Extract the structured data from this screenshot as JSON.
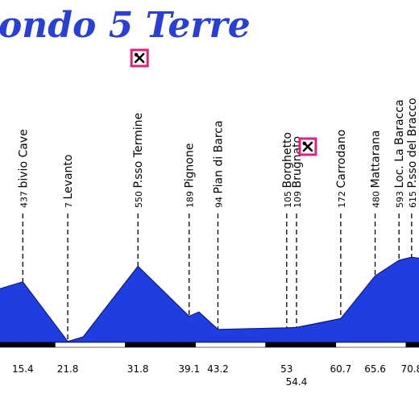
{
  "chart_data": {
    "type": "area",
    "title": "...ondo 5 Terre",
    "xlabel": "",
    "ylabel": "",
    "xlim": [
      11.0,
      73.0
    ],
    "ylim": [
      0,
      700
    ],
    "fill_color": "#1f3de0",
    "line_color": "#0c1a8a",
    "profile": [
      {
        "x": 11.0,
        "y": 370
      },
      {
        "x": 15.4,
        "y": 437
      },
      {
        "x": 21.8,
        "y": 7
      },
      {
        "x": 24.0,
        "y": 40
      },
      {
        "x": 31.8,
        "y": 550
      },
      {
        "x": 39.1,
        "y": 189
      },
      {
        "x": 40.5,
        "y": 220
      },
      {
        "x": 43.2,
        "y": 94
      },
      {
        "x": 53.0,
        "y": 105
      },
      {
        "x": 54.4,
        "y": 109
      },
      {
        "x": 60.7,
        "y": 172
      },
      {
        "x": 65.6,
        "y": 480
      },
      {
        "x": 69.0,
        "y": 593
      },
      {
        "x": 70.8,
        "y": 615
      },
      {
        "x": 73.0,
        "y": 600
      }
    ],
    "waypoints": [
      {
        "km": 15.4,
        "km_label": "15.4",
        "alt": "437",
        "name": "bivio Cave"
      },
      {
        "km": 21.8,
        "km_label": "21.8",
        "alt": "7",
        "name": "Levanto"
      },
      {
        "km": 31.8,
        "km_label": "31.8",
        "alt": "550",
        "name": "P.sso Termine"
      },
      {
        "km": 39.1,
        "km_label": "39.1",
        "alt": "189",
        "name": "Pignone"
      },
      {
        "km": 43.2,
        "km_label": "43.2",
        "alt": "94",
        "name": "Pian di Barca"
      },
      {
        "km": 53.0,
        "km_label": "53",
        "alt": "105",
        "name": "Borghetto"
      },
      {
        "km": 54.4,
        "km_label": "54.4",
        "alt": "109",
        "name": "Brugnato"
      },
      {
        "km": 60.7,
        "km_label": "60.7",
        "alt": "172",
        "name": "Carrodano"
      },
      {
        "km": 65.6,
        "km_label": "65.6",
        "alt": "480",
        "name": "Mattarana"
      },
      {
        "km": 69.0,
        "km_label": "",
        "alt": "593",
        "name": "Loc. La Baracca"
      },
      {
        "km": 70.8,
        "km_label": "70.8",
        "alt": "615",
        "name": "P.sso del Bracco"
      }
    ],
    "scale_bar": {
      "segment_km": 10,
      "colors": [
        "#000000",
        "#ffffff"
      ]
    },
    "food_stops": [
      {
        "km": 31.8,
        "icon": "fork-knife-icon"
      },
      {
        "km": 56.0,
        "icon": "fork-knife-icon"
      }
    ],
    "icon_border_color": "#e0227a",
    "grid": false,
    "legend": "none"
  }
}
